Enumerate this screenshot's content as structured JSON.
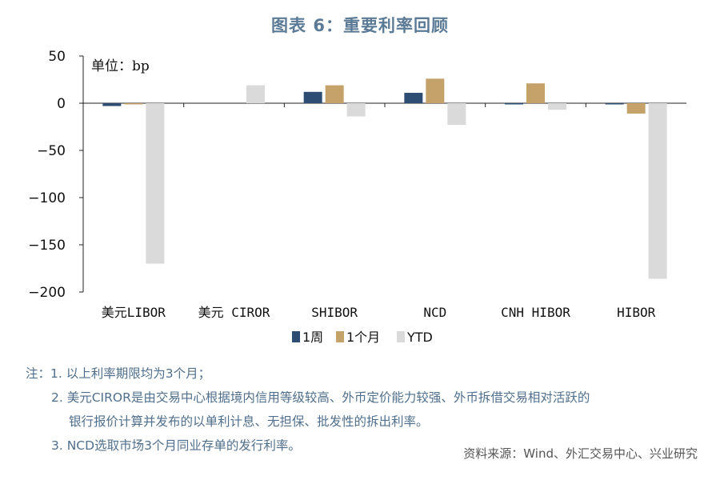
{
  "title": "图表 6：重要利率回顾",
  "chart_data": {
    "type": "bar",
    "unit_label": "单位：bp",
    "categories": [
      "美元LIBOR",
      "美元 CIROR",
      "SHIBOR",
      "NCD",
      "CNH HIBOR",
      "HIBOR"
    ],
    "series": [
      {
        "name": "1周",
        "color": "#2e4d72",
        "values": [
          -3,
          0,
          12,
          11,
          -1,
          -1
        ]
      },
      {
        "name": "1个月",
        "color": "#c4a26a",
        "values": [
          -1,
          0,
          19,
          26,
          21,
          -11
        ]
      },
      {
        "name": "YTD",
        "color": "#dadada",
        "values": [
          -170,
          19,
          -14,
          -23,
          -7,
          -186
        ]
      }
    ],
    "ylim": [
      -200,
      50
    ],
    "yticks": [
      "50",
      "0",
      "−50",
      "−100",
      "−150",
      "−200"
    ],
    "ytick_values": [
      50,
      0,
      -50,
      -100,
      -150,
      -200
    ],
    "legend_position": "bottom"
  },
  "notes": [
    "注：1. 以上利率期限均为3个月；",
    "2. 美元CIROR是由交易中心根据境内信用等级较高、外币定价能力较强、外币拆借交易相对活跃的",
    "银行报价计算并发布的以单利计息、无担保、批发性的拆出利率。",
    "3. NCD选取市场3个月同业存单的发行利率。"
  ],
  "source": "资料来源：Wind、外汇交易中心、兴业研究"
}
